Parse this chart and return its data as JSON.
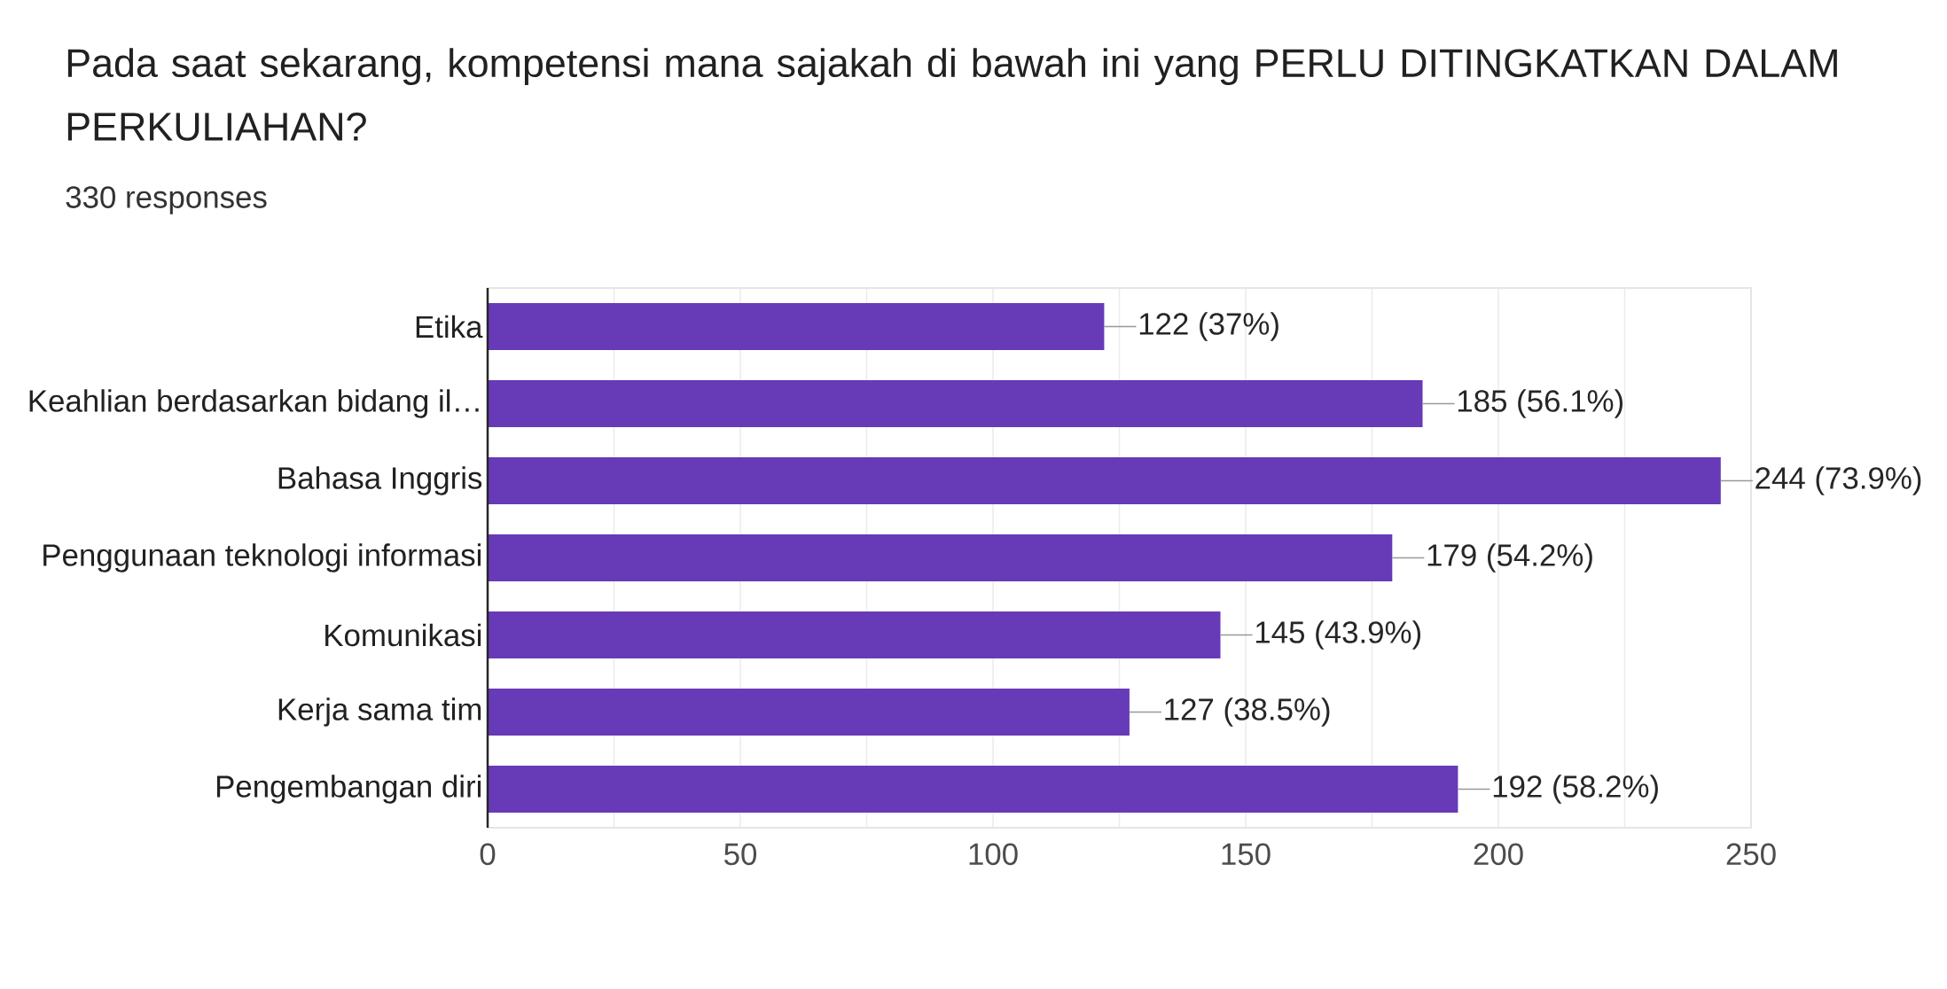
{
  "chart_data": {
    "type": "bar",
    "orientation": "horizontal",
    "title": "Pada saat sekarang, kompetensi mana sajakah di bawah ini yang PERLU DITINGKATKAN DALAM PERKULIAHAN?",
    "subtitle": "330 responses",
    "categories": [
      "Etika",
      "Keahlian berdasarkan bidang il…",
      "Bahasa Inggris",
      "Penggunaan teknologi informasi",
      "Komunikasi",
      "Kerja sama tim",
      "Pengembangan diri"
    ],
    "values": [
      122,
      185,
      244,
      179,
      145,
      127,
      192
    ],
    "value_labels": [
      "122 (37%)",
      "185 (56.1%)",
      "244 (73.9%)",
      "179 (54.2%)",
      "145 (43.9%)",
      "127 (38.5%)",
      "192 (58.2%)"
    ],
    "color": "#673ab7",
    "xlim": [
      0,
      250
    ],
    "xticks": [
      0,
      {
        "value": 25,
        "label": null
      },
      50,
      {
        "value": 75,
        "label": null
      },
      100,
      {
        "value": 125,
        "label": null
      },
      150,
      {
        "value": 175,
        "label": null
      },
      200,
      {
        "value": 225,
        "label": null
      },
      250
    ],
    "grid": "x"
  }
}
